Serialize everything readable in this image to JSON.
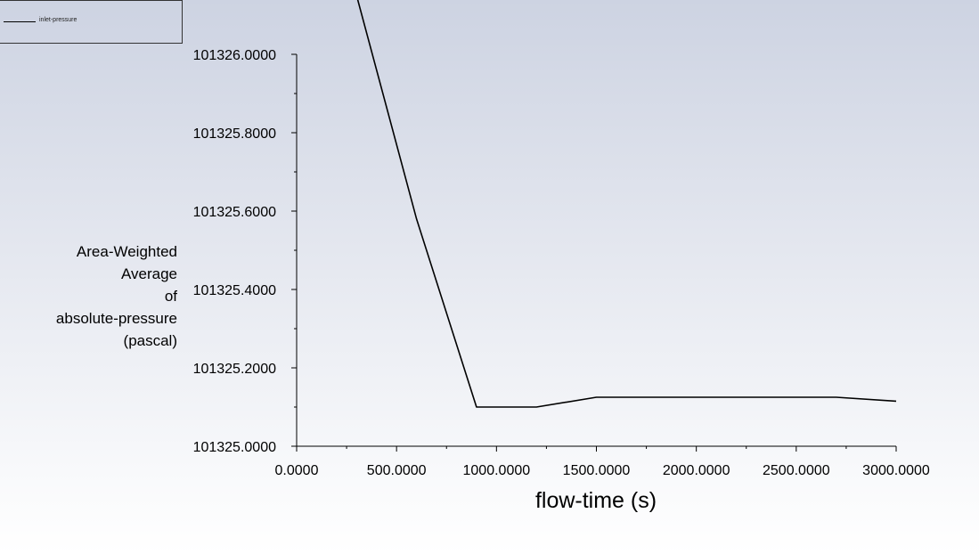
{
  "chart_data": {
    "type": "line",
    "title": "",
    "xlabel": "flow-time (s)",
    "ylabel_lines": [
      "Area-Weighted",
      "Average",
      "of",
      "absolute-pressure",
      "(pascal)"
    ],
    "xlim": [
      0,
      3000
    ],
    "ylim": [
      101325.0,
      101326.0
    ],
    "x_ticks": [
      0,
      500,
      1000,
      1500,
      2000,
      2500,
      3000
    ],
    "x_tick_labels": [
      "0.0000",
      "500.0000",
      "1000.0000",
      "1500.0000",
      "2000.0000",
      "2500.0000",
      "3000.0000"
    ],
    "y_ticks": [
      101325.0,
      101325.2,
      101325.4,
      101325.6,
      101325.8,
      101326.0
    ],
    "y_tick_labels": [
      "101325.0000",
      "101325.2000",
      "101325.4000",
      "101325.6000",
      "101325.8000",
      "101326.0000"
    ],
    "x_minor_step": 250,
    "y_minor_step": 0.1,
    "grid": false,
    "legend_position": "top-left",
    "series": [
      {
        "name": "inlet-pressure",
        "color": "#000000",
        "x": [
          300,
          600,
          900,
          1200,
          1500,
          1800,
          2100,
          2400,
          2700,
          3000
        ],
        "y": [
          101326.15,
          101325.58,
          101325.1,
          101325.1,
          101325.125,
          101325.125,
          101325.125,
          101325.125,
          101325.125,
          101325.115
        ]
      }
    ]
  }
}
